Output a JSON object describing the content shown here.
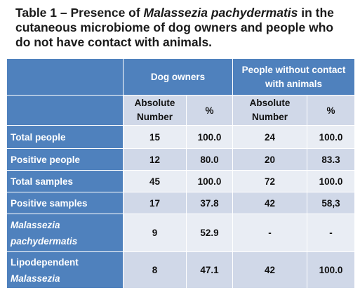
{
  "title": {
    "prefix": "Table 1 – Presence of ",
    "species": "Malassezia pachydermatis",
    "suffix": " in the cutaneous microbiome of dog owners and people who do not have contact with animals."
  },
  "table": {
    "group_headers": [
      "Dog owners",
      "People without contact with animals"
    ],
    "sub_headers": [
      "Absolute Number",
      "%",
      "Absolute Number",
      "%"
    ],
    "rows": [
      {
        "label": "Total people",
        "italic": false,
        "cells": [
          "15",
          "100.0",
          "24",
          "100.0"
        ]
      },
      {
        "label": "Positive people",
        "italic": false,
        "cells": [
          "12",
          "80.0",
          "20",
          "83.3"
        ]
      },
      {
        "label": "Total samples",
        "italic": false,
        "cells": [
          "45",
          "100.0",
          "72",
          "100.0"
        ]
      },
      {
        "label": "Positive samples",
        "italic": false,
        "cells": [
          "17",
          "37.8",
          "42",
          "58,3"
        ]
      },
      {
        "label": "Malassezia pachydermatis",
        "italic": true,
        "cells": [
          "9",
          "52.9",
          "-",
          "-"
        ]
      },
      {
        "label_line1": "Lipodependent",
        "label_line2": "Malassezia",
        "label": "Lipodependent Malassezia",
        "italic": false,
        "cells": [
          "8",
          "47.1",
          "42",
          "100.0"
        ]
      }
    ]
  }
}
